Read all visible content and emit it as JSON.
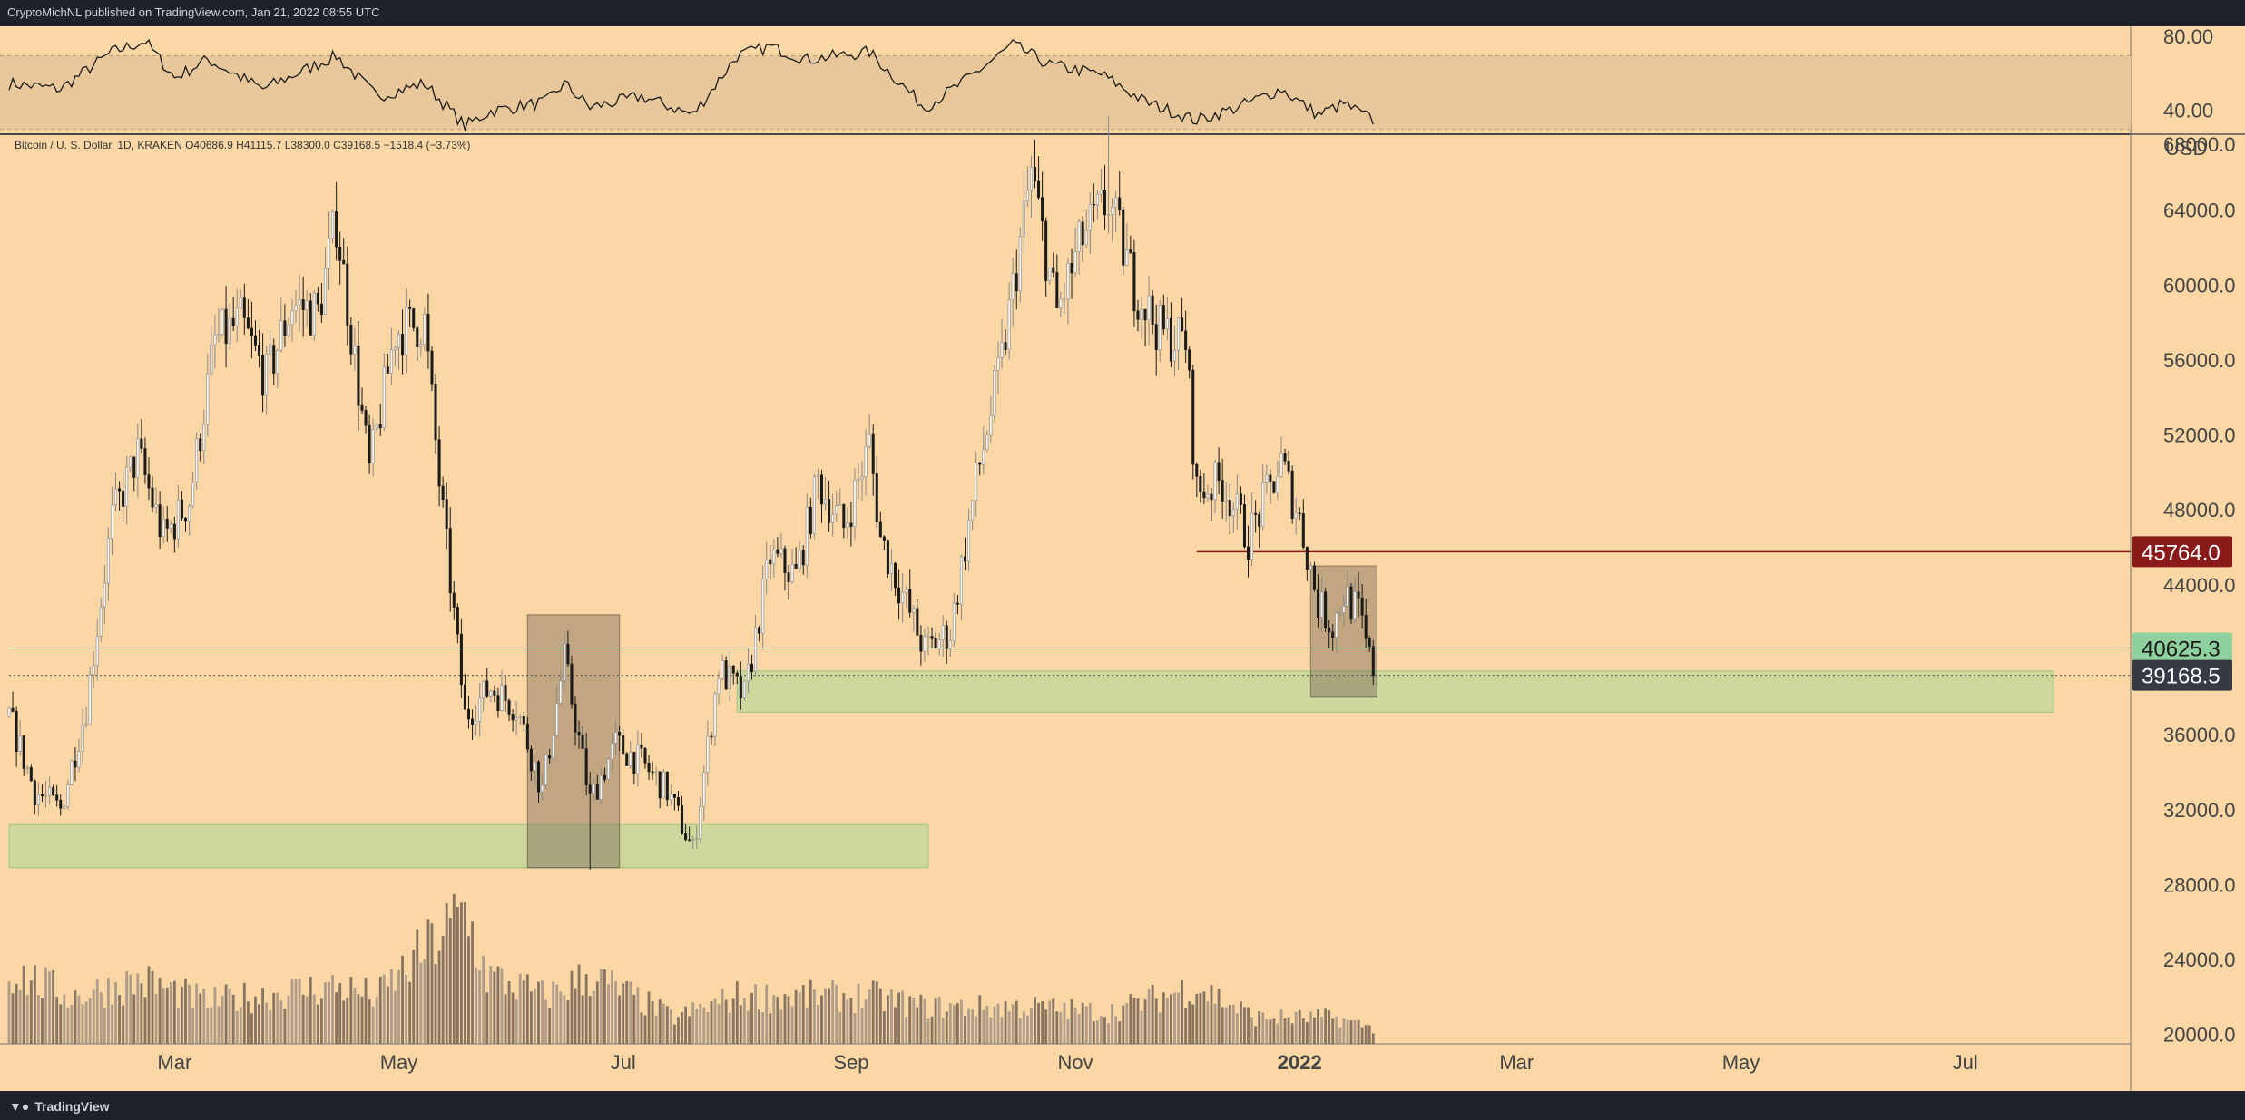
{
  "header": {
    "published_text": "CryptoMichNL published on TradingView.com, Jan 21, 2022 08:55 UTC"
  },
  "footer": {
    "brand": "TradingView"
  },
  "colors": {
    "background": "#fad7a4",
    "candle": "#1a1a1a",
    "resistance_line": "#8b1a1a",
    "resistance_label_bg": "#8b1a1a",
    "support_label_bg": "#8fd19e",
    "current_label_bg": "#363a45",
    "zone_fill": "#c8d89b"
  },
  "icons": {
    "brand_logo": "tradingview-logo-icon"
  },
  "chart_data": {
    "type": "candlestick",
    "instrument": "Bitcoin / U. S. Dollar, 1D, KRAKEN",
    "ohlc_readout": "O40686.9 H41115.7 L38300.0 C39168.5 −1518.4 (−3.73%)",
    "currency": "USD",
    "x_ticks": [
      "Mar",
      "May",
      "Jul",
      "Sep",
      "Nov",
      "2022",
      "Mar",
      "May",
      "Jul"
    ],
    "x_range": [
      "2021-01-15",
      "2022-08-15"
    ],
    "y_ticks": [
      "68000.0",
      "64000.0",
      "60000.0",
      "56000.0",
      "52000.0",
      "48000.0",
      "44000.0",
      "36000.0",
      "32000.0",
      "28000.0",
      "24000.0",
      "20000.0"
    ],
    "y_range": [
      19500,
      68000
    ],
    "price_labels": [
      {
        "value": "45764.0",
        "role": "resistance"
      },
      {
        "value": "40625.3",
        "role": "support"
      },
      {
        "value": "39168.5",
        "role": "current"
      }
    ],
    "close_path": [
      [
        "2021-01-15",
        37000
      ],
      [
        "2021-01-22",
        33000
      ],
      [
        "2021-01-29",
        32000
      ],
      [
        "2021-02-05",
        37500
      ],
      [
        "2021-02-12",
        47500
      ],
      [
        "2021-02-19",
        51000
      ],
      [
        "2021-02-26",
        46500
      ],
      [
        "2021-03-05",
        48500
      ],
      [
        "2021-03-12",
        57000
      ],
      [
        "2021-03-19",
        58000
      ],
      [
        "2021-03-26",
        55000
      ],
      [
        "2021-04-02",
        59000
      ],
      [
        "2021-04-09",
        58500
      ],
      [
        "2021-04-14",
        63500
      ],
      [
        "2021-04-23",
        50000
      ],
      [
        "2021-04-30",
        57500
      ],
      [
        "2021-05-08",
        58000
      ],
      [
        "2021-05-12",
        49500
      ],
      [
        "2021-05-19",
        37000
      ],
      [
        "2021-05-26",
        38500
      ],
      [
        "2021-06-02",
        37500
      ],
      [
        "2021-06-09",
        33000
      ],
      [
        "2021-06-15",
        40000
      ],
      [
        "2021-06-22",
        32500
      ],
      [
        "2021-06-29",
        35500
      ],
      [
        "2021-07-06",
        34500
      ],
      [
        "2021-07-13",
        33000
      ],
      [
        "2021-07-20",
        29800
      ],
      [
        "2021-07-27",
        39500
      ],
      [
        "2021-08-03",
        38000
      ],
      [
        "2021-08-10",
        45500
      ],
      [
        "2021-08-17",
        44500
      ],
      [
        "2021-08-23",
        49500
      ],
      [
        "2021-08-30",
        47000
      ],
      [
        "2021-09-06",
        51500
      ],
      [
        "2021-09-09",
        46500
      ],
      [
        "2021-09-21",
        40500
      ],
      [
        "2021-09-28",
        41500
      ],
      [
        "2021-10-05",
        49500
      ],
      [
        "2021-10-12",
        56000
      ],
      [
        "2021-10-20",
        66000
      ],
      [
        "2021-10-27",
        58500
      ],
      [
        "2021-11-03",
        62500
      ],
      [
        "2021-11-10",
        64500
      ],
      [
        "2021-11-17",
        60000
      ],
      [
        "2021-11-24",
        57500
      ],
      [
        "2021-12-01",
        57000
      ],
      [
        "2021-12-04",
        49000
      ],
      [
        "2021-12-11",
        49500
      ],
      [
        "2021-12-18",
        46500
      ],
      [
        "2021-12-27",
        50500
      ],
      [
        "2022-01-01",
        47500
      ],
      [
        "2022-01-06",
        43000
      ],
      [
        "2022-01-10",
        41800
      ],
      [
        "2022-01-13",
        43500
      ],
      [
        "2022-01-17",
        42500
      ],
      [
        "2022-01-21",
        39168.5
      ]
    ],
    "notable_extremes": {
      "high": [
        "2021-11-10",
        69000
      ],
      "low": [
        "2021-06-22",
        28800
      ]
    },
    "horizontal_lines": [
      {
        "value": 45764.0,
        "from": "2021-12-04",
        "style": "solid"
      },
      {
        "value": 40625.3,
        "from": "2021-01-15",
        "style": "solid"
      },
      {
        "value": 39168.5,
        "from": "2021-01-15",
        "style": "dotted"
      }
    ],
    "zones": [
      {
        "kind": "support",
        "from": "2021-01-15",
        "to": "2021-09-22",
        "low": 28900,
        "high": 31200
      },
      {
        "kind": "support",
        "from": "2021-08-01",
        "to": "2022-07-25",
        "low": 37200,
        "high": 39400
      },
      {
        "kind": "consolidation",
        "from": "2021-06-05",
        "to": "2021-06-30",
        "low": 28900,
        "high": 42400
      },
      {
        "kind": "consolidation",
        "from": "2022-01-04",
        "to": "2022-01-22",
        "low": 38000,
        "high": 45000
      }
    ],
    "rsi": {
      "y_ticks": [
        "80.00",
        "40.00"
      ],
      "y_range": [
        28,
        86
      ],
      "band": [
        30,
        70
      ],
      "path": [
        [
          "2021-01-15",
          55
        ],
        [
          "2021-01-29",
          52
        ],
        [
          "2021-02-12",
          72
        ],
        [
          "2021-02-21",
          78
        ],
        [
          "2021-03-01",
          58
        ],
        [
          "2021-03-10",
          68
        ],
        [
          "2021-03-25",
          52
        ],
        [
          "2021-04-14",
          70
        ],
        [
          "2021-04-25",
          48
        ],
        [
          "2021-05-08",
          55
        ],
        [
          "2021-05-19",
          32
        ],
        [
          "2021-05-26",
          40
        ],
        [
          "2021-06-10",
          45
        ],
        [
          "2021-06-15",
          55
        ],
        [
          "2021-06-22",
          42
        ],
        [
          "2021-07-06",
          48
        ],
        [
          "2021-07-20",
          38
        ],
        [
          "2021-08-01",
          70
        ],
        [
          "2021-08-10",
          75
        ],
        [
          "2021-08-20",
          68
        ],
        [
          "2021-09-06",
          72
        ],
        [
          "2021-09-21",
          42
        ],
        [
          "2021-10-01",
          55
        ],
        [
          "2021-10-15",
          76
        ],
        [
          "2021-10-25",
          65
        ],
        [
          "2021-11-08",
          60
        ],
        [
          "2021-11-20",
          45
        ],
        [
          "2021-12-04",
          35
        ],
        [
          "2021-12-15",
          42
        ],
        [
          "2021-12-27",
          52
        ],
        [
          "2022-01-06",
          38
        ],
        [
          "2022-01-13",
          44
        ],
        [
          "2022-01-21",
          35
        ]
      ]
    },
    "volume_range": [
      0,
      2500
    ],
    "volume_path": [
      [
        "2021-01-15",
        1400
      ],
      [
        "2021-02-01",
        900
      ],
      [
        "2021-02-20",
        1200
      ],
      [
        "2021-03-10",
        800
      ],
      [
        "2021-04-14",
        1100
      ],
      [
        "2021-04-25",
        900
      ],
      [
        "2021-05-19",
        2500
      ],
      [
        "2021-05-25",
        1300
      ],
      [
        "2021-06-10",
        900
      ],
      [
        "2021-06-22",
        1300
      ],
      [
        "2021-07-15",
        500
      ],
      [
        "2021-08-01",
        900
      ],
      [
        "2021-09-07",
        900
      ],
      [
        "2021-09-21",
        700
      ],
      [
        "2021-10-20",
        700
      ],
      [
        "2021-11-10",
        600
      ],
      [
        "2021-12-04",
        1100
      ],
      [
        "2021-12-20",
        500
      ],
      [
        "2022-01-10",
        500
      ],
      [
        "2022-01-21",
        300
      ]
    ],
    "title": "",
    "xlabel": "",
    "ylabel": ""
  }
}
